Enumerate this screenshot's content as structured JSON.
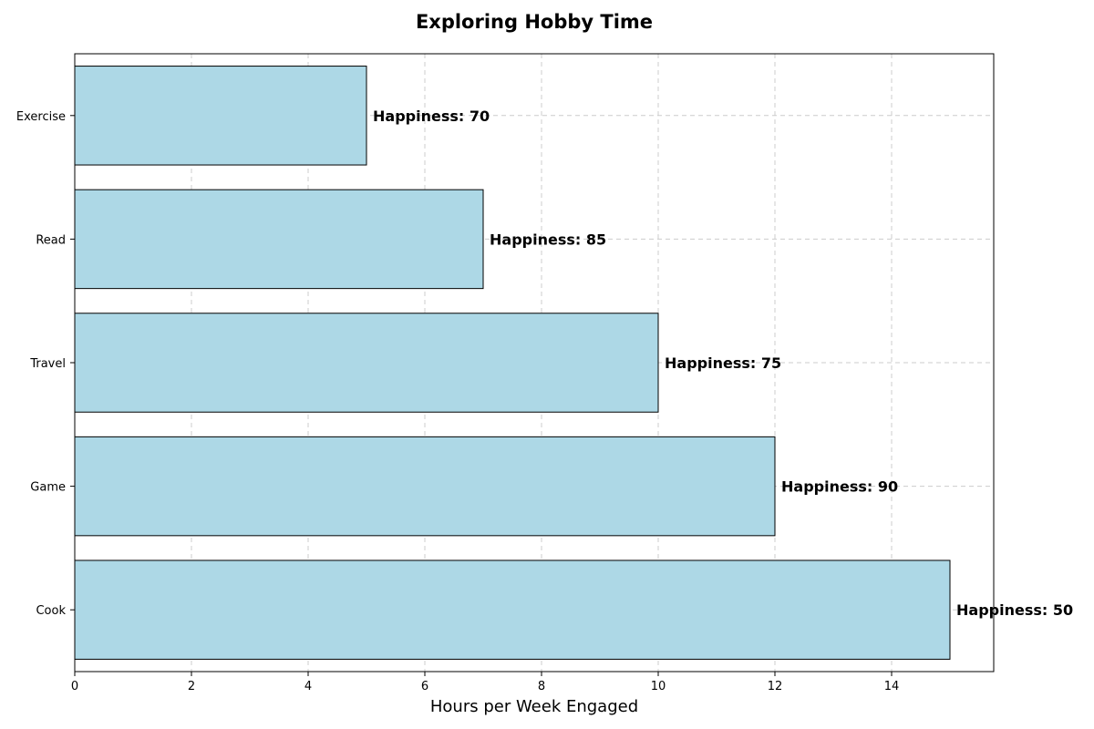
{
  "chart_data": {
    "type": "bar",
    "orientation": "horizontal",
    "title": "Exploring Hobby Time",
    "xlabel": "Hours per Week Engaged",
    "ylabel": "",
    "categories": [
      "Cook",
      "Game",
      "Travel",
      "Read",
      "Exercise"
    ],
    "values": [
      15,
      12,
      10,
      7,
      5
    ],
    "happiness": [
      50,
      90,
      75,
      85,
      70
    ],
    "data_labels": [
      "Happiness: 50",
      "Happiness: 90",
      "Happiness: 75",
      "Happiness: 85",
      "Happiness: 70"
    ],
    "xlim": [
      0,
      15.75
    ],
    "xticks": [
      0,
      2,
      4,
      6,
      8,
      10,
      12,
      14
    ],
    "grid": true,
    "bar_color": "#add8e6",
    "bar_edge_color": "#000000"
  }
}
